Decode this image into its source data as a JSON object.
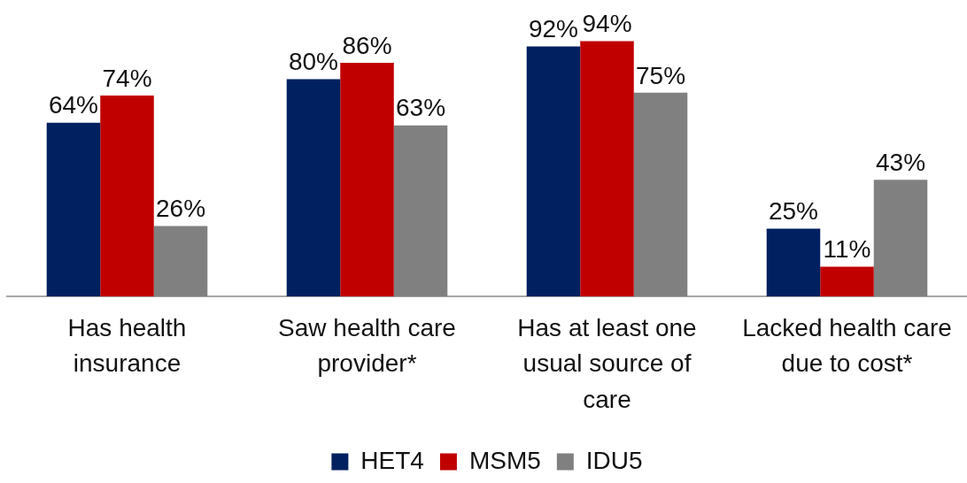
{
  "chart_data": {
    "type": "bar",
    "categories": [
      "Has health insurance",
      "Saw health care provider*",
      "Has at least one usual source of care",
      "Lacked health care due to cost*"
    ],
    "series": [
      {
        "name": "HET4",
        "color": "#002060",
        "values": [
          64,
          80,
          92,
          25
        ],
        "value_labels": [
          "64%",
          "80%",
          "92%",
          "25%"
        ]
      },
      {
        "name": "MSM5",
        "color": "#c00000",
        "values": [
          74,
          86,
          94,
          11
        ],
        "value_labels": [
          "74%",
          "86%",
          "94%",
          "11%"
        ]
      },
      {
        "name": "IDU5",
        "color": "#808080",
        "values": [
          26,
          63,
          75,
          43
        ],
        "value_labels": [
          "26%",
          "63%",
          "75%",
          "43%"
        ]
      }
    ],
    "legend": "bottom"
  }
}
